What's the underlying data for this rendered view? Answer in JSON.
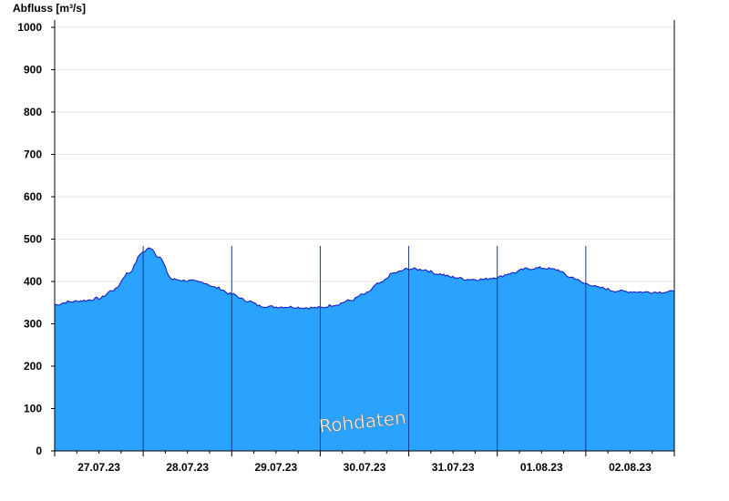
{
  "chart_data": {
    "type": "area",
    "ylabel": "Abfluss [m³/s]",
    "ylim": [
      0,
      1000
    ],
    "yticks": [
      0,
      100,
      200,
      300,
      400,
      500,
      600,
      700,
      800,
      900,
      1000
    ],
    "xlim": [
      "27.07.23 00:00",
      "03.08.23 00:00"
    ],
    "x_tick_labels": [
      "27.07.23",
      "28.07.23",
      "29.07.23",
      "30.07.23",
      "31.07.23",
      "01.08.23",
      "02.08.23"
    ],
    "day_boundaries": [
      "28.07.23 00:00",
      "29.07.23 00:00",
      "30.07.23 00:00",
      "31.07.23 00:00",
      "01.08.23 00:00",
      "02.08.23 00:00"
    ],
    "grid": "horizontal",
    "watermark": "Rohdaten",
    "series": [
      {
        "name": "",
        "color": "#29a3ff",
        "line_color": "#1010c0",
        "x": [
          "27.07.23 00:00",
          "27.07.23 04:00",
          "27.07.23 08:00",
          "27.07.23 12:00",
          "27.07.23 16:00",
          "27.07.23 20:00",
          "28.07.23 00:00",
          "28.07.23 02:00",
          "28.07.23 04:00",
          "28.07.23 08:00",
          "28.07.23 12:00",
          "28.07.23 16:00",
          "28.07.23 20:00",
          "29.07.23 00:00",
          "29.07.23 04:00",
          "29.07.23 08:00",
          "29.07.23 12:00",
          "29.07.23 16:00",
          "29.07.23 20:00",
          "30.07.23 00:00",
          "30.07.23 04:00",
          "30.07.23 08:00",
          "30.07.23 12:00",
          "30.07.23 16:00",
          "30.07.23 20:00",
          "31.07.23 00:00",
          "31.07.23 04:00",
          "31.07.23 08:00",
          "31.07.23 12:00",
          "31.07.23 16:00",
          "31.07.23 20:00",
          "01.08.23 00:00",
          "01.08.23 04:00",
          "01.08.23 08:00",
          "01.08.23 12:00",
          "01.08.23 16:00",
          "01.08.23 20:00",
          "02.08.23 00:00",
          "02.08.23 04:00",
          "02.08.23 08:00",
          "02.08.23 12:00",
          "02.08.23 16:00",
          "02.08.23 20:00",
          "03.08.23 00:00"
        ],
        "y": [
          345,
          352,
          355,
          360,
          380,
          420,
          470,
          480,
          460,
          405,
          402,
          398,
          385,
          370,
          355,
          342,
          340,
          340,
          338,
          338,
          345,
          355,
          370,
          395,
          420,
          430,
          428,
          418,
          410,
          405,
          405,
          410,
          420,
          430,
          432,
          428,
          410,
          395,
          385,
          378,
          376,
          375,
          375,
          376
        ]
      }
    ]
  }
}
